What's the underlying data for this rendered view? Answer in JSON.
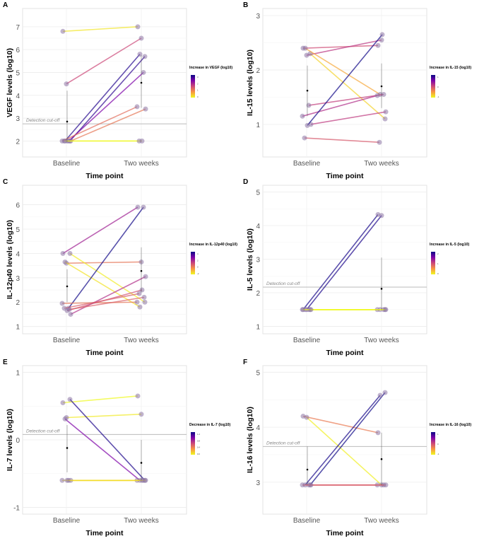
{
  "chart_data": [
    {
      "type": "line",
      "panel": "A",
      "ylabel": "VEGF levels (log10)",
      "xlabel": "Time point",
      "categories": [
        "Baseline",
        "Two weeks"
      ],
      "ylim": [
        1.3,
        7.8
      ],
      "yticks": [
        2,
        3,
        4,
        5,
        6,
        7
      ],
      "cutoff": 2.75,
      "cutoff_label": "Detection cut-off",
      "legend": {
        "title": "Increase in VEGF (log10)",
        "ticks": [
          "3",
          "2",
          "1",
          "0"
        ],
        "range": [
          0,
          4
        ]
      },
      "subjects": [
        [
          6.8,
          7.0
        ],
        [
          4.5,
          6.5
        ],
        [
          2.0,
          5.7
        ],
        [
          2.0,
          5.8
        ],
        [
          2.0,
          5.0
        ],
        [
          2.0,
          3.5
        ],
        [
          2.0,
          3.4
        ],
        [
          2.0,
          2.0
        ],
        [
          2.0,
          2.0
        ]
      ],
      "summary": [
        {
          "mean": 2.85,
          "low": 1.95,
          "high": 4.2
        },
        {
          "mean": 4.55,
          "low": 3.45,
          "high": 5.75
        }
      ]
    },
    {
      "type": "line",
      "panel": "B",
      "ylabel": "IL-15 levels (log10)",
      "xlabel": "Time point",
      "categories": [
        "Baseline",
        "Two weeks"
      ],
      "ylim": [
        0.4,
        3.13
      ],
      "yticks": [
        1,
        2,
        3
      ],
      "cutoff": null,
      "cutoff_label": "",
      "legend": {
        "title": "Increase in IL-15 (log10)",
        "ticks": [
          "1",
          "0",
          "-1"
        ],
        "range": [
          -1.5,
          1.7
        ]
      },
      "subjects": [
        [
          2.4,
          2.45
        ],
        [
          2.27,
          2.55
        ],
        [
          2.3,
          1.1
        ],
        [
          2.4,
          1.55
        ],
        [
          1.35,
          1.55
        ],
        [
          1.15,
          1.53
        ],
        [
          1.0,
          1.23
        ],
        [
          0.98,
          2.65
        ],
        [
          0.75,
          0.67
        ]
      ],
      "summary": [
        {
          "mean": 1.62,
          "low": 1.15,
          "high": 2.08
        },
        {
          "mean": 1.7,
          "low": 1.3,
          "high": 2.12
        }
      ]
    },
    {
      "type": "line",
      "panel": "C",
      "ylabel": "IL-12p40 levels (log10)",
      "xlabel": "Time point",
      "categories": [
        "Baseline",
        "Two weeks"
      ],
      "ylim": [
        0.7,
        6.8
      ],
      "yticks": [
        1,
        2,
        3,
        4,
        5,
        6
      ],
      "cutoff": null,
      "cutoff_label": "",
      "legend": {
        "title": "Increase in IL-12p40 (log10)",
        "ticks": [
          "4",
          "2",
          "0",
          "-2"
        ],
        "range": [
          -2.2,
          4.2
        ]
      },
      "subjects": [
        [
          4.0,
          5.9
        ],
        [
          3.6,
          3.65
        ],
        [
          4.0,
          2.0
        ],
        [
          3.65,
          1.8
        ],
        [
          1.75,
          5.9
        ],
        [
          1.95,
          2.0
        ],
        [
          1.5,
          3.05
        ],
        [
          1.65,
          2.5
        ],
        [
          1.75,
          2.35
        ],
        [
          1.7,
          2.2
        ]
      ],
      "summary": [
        {
          "mean": 2.65,
          "low": 2.0,
          "high": 3.35
        },
        {
          "mean": 3.28,
          "low": 2.4,
          "high": 4.25
        }
      ]
    },
    {
      "type": "line",
      "panel": "D",
      "ylabel": "IL-5 levels (log10)",
      "xlabel": "Time point",
      "categories": [
        "Baseline",
        "Two weeks"
      ],
      "ylim": [
        0.78,
        5.2
      ],
      "yticks": [
        1,
        2,
        3,
        4,
        5
      ],
      "cutoff": 2.17,
      "cutoff_label": "Detection cut-off",
      "legend": {
        "title": "Increase in IL-5 (log10)",
        "ticks": [
          "2",
          "1",
          "0"
        ],
        "range": [
          0,
          2.9
        ]
      },
      "subjects": [
        [
          1.5,
          4.33
        ],
        [
          1.5,
          4.3
        ],
        [
          1.5,
          1.5
        ],
        [
          1.5,
          1.5
        ],
        [
          1.5,
          1.5
        ],
        [
          1.5,
          1.5
        ],
        [
          1.5,
          1.5
        ]
      ],
      "summary": [
        null,
        {
          "mean": 2.12,
          "low": 1.5,
          "high": 3.05
        }
      ]
    },
    {
      "type": "line",
      "panel": "E",
      "ylabel": "IL-7 levels (log10)",
      "xlabel": "Time point",
      "categories": [
        "Baseline",
        "Two weeks"
      ],
      "ylim": [
        -1.1,
        1.1
      ],
      "yticks": [
        -1,
        0,
        1
      ],
      "cutoff": 0.08,
      "cutoff_label": "Detection cut-off",
      "legend": {
        "title": "Decrease in IL-7 (log10)",
        "ticks": [
          "1.2",
          "0.8",
          "0.4",
          "0.0"
        ],
        "range": [
          -0.1,
          1.25
        ]
      },
      "subjects": [
        [
          0.55,
          0.65
        ],
        [
          0.33,
          0.38
        ],
        [
          0.6,
          -0.6
        ],
        [
          0.31,
          -0.6
        ],
        [
          -0.6,
          -0.6
        ],
        [
          -0.6,
          -0.6
        ],
        [
          -0.6,
          -0.6
        ],
        [
          -0.6,
          -0.6
        ]
      ],
      "summary": [
        {
          "mean": -0.12,
          "low": -0.48,
          "high": 0.22
        },
        {
          "mean": -0.34,
          "low": -0.6,
          "high": 0.0
        }
      ]
    },
    {
      "type": "line",
      "panel": "F",
      "ylabel": "IL-16 levels (log10)",
      "xlabel": "Time point",
      "categories": [
        "Baseline",
        "Two weeks"
      ],
      "ylim": [
        2.42,
        5.12
      ],
      "yticks": [
        3,
        4,
        5
      ],
      "cutoff": 3.65,
      "cutoff_label": "Detection cut-off",
      "legend": {
        "title": "Increase in IL-16 (log10)",
        "ticks": [
          "1",
          "0",
          "-1"
        ],
        "range": [
          -1.3,
          1.7
        ]
      },
      "subjects": [
        [
          4.2,
          3.9
        ],
        [
          4.18,
          2.95
        ],
        [
          2.95,
          4.63
        ],
        [
          2.95,
          4.58
        ],
        [
          2.95,
          2.95
        ],
        [
          2.95,
          2.95
        ],
        [
          2.95,
          2.95
        ]
      ],
      "summary": [
        {
          "mean": 3.23,
          "low": 2.95,
          "high": 3.65
        },
        {
          "mean": 3.42,
          "low": 2.95,
          "high": 3.9
        }
      ]
    }
  ]
}
